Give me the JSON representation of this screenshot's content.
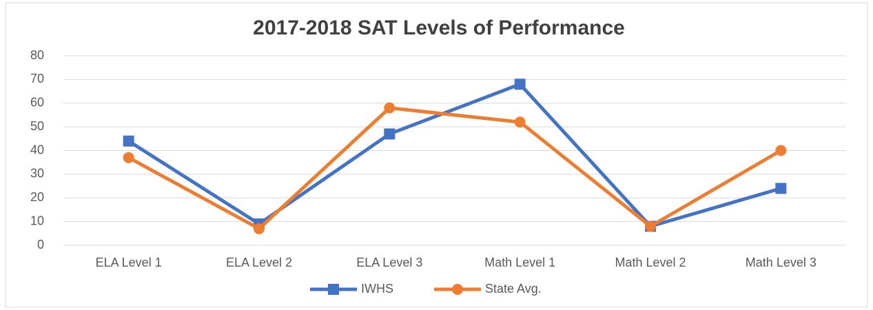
{
  "chart_data": {
    "type": "line",
    "title": "2017-2018 SAT Levels of Performance",
    "categories": [
      "ELA Level 1",
      "ELA Level 2",
      "ELA Level 3",
      "Math Level 1",
      "Math Level 2",
      "Math Level 3"
    ],
    "series": [
      {
        "name": "IWHS",
        "color": "#4472c4",
        "values": [
          44,
          9,
          47,
          68,
          8,
          24
        ]
      },
      {
        "name": "State Avg.",
        "color": "#ed7d31",
        "values": [
          37,
          7,
          58,
          52,
          8,
          40
        ]
      }
    ],
    "ylim": [
      0,
      80
    ],
    "yticks": [
      0,
      10,
      20,
      30,
      40,
      50,
      60,
      70,
      80
    ],
    "grid": true,
    "legend": "bottom"
  }
}
